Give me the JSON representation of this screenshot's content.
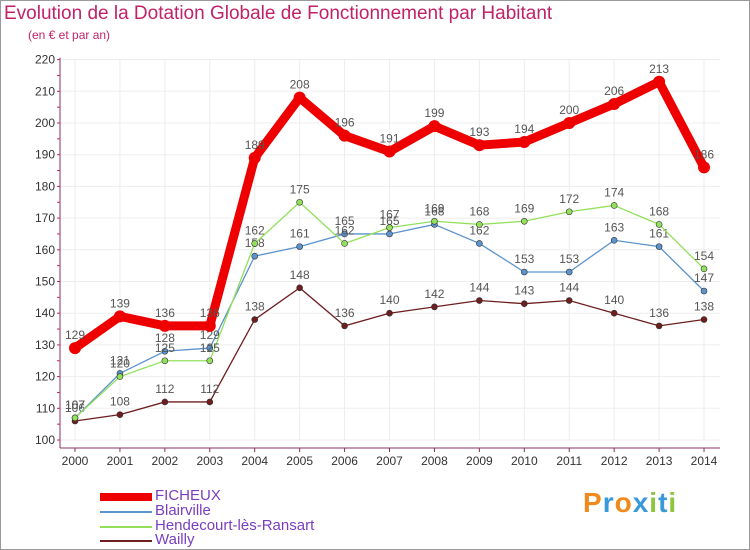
{
  "chart_data": {
    "type": "line",
    "title": "Evolution de la Dotation Globale de Fonctionnement par Habitant",
    "subtitle": "(en € et par an)",
    "xlabel": "",
    "ylabel": "",
    "ylim": [
      100,
      220
    ],
    "yticks": [
      "100",
      "110",
      "120",
      "130",
      "140",
      "150",
      "160",
      "170",
      "180",
      "190",
      "200",
      "210",
      "220"
    ],
    "categories": [
      "2000",
      "2001",
      "2002",
      "2003",
      "2004",
      "2005",
      "2006",
      "2007",
      "2008",
      "2009",
      "2010",
      "2011",
      "2012",
      "2013",
      "2014"
    ],
    "legend_position": "bottom-left",
    "series": [
      {
        "name": "Wailly",
        "color": "#6e1e1e",
        "values": [
          106,
          108,
          112,
          112,
          138,
          148,
          136,
          140,
          142,
          144,
          143,
          144,
          140,
          136,
          138
        ],
        "labels": [
          "106",
          "108",
          "112",
          "112",
          "138",
          "148",
          "136",
          "140",
          "142",
          "144",
          "143",
          "144",
          "140",
          "136",
          "138"
        ]
      },
      {
        "name": "Blairville",
        "color": "#5b93cc",
        "values": [
          107,
          121,
          128,
          129,
          158,
          161,
          165,
          165,
          168,
          162,
          153,
          153,
          163,
          161,
          147
        ],
        "labels": [
          "107",
          "121",
          "128",
          "129",
          "158",
          "161",
          "165",
          "165",
          "168",
          "162",
          "153",
          "153",
          "163",
          "161",
          "147"
        ]
      },
      {
        "name": "Hendecourt-lès-Ransart",
        "color": "#92e05c",
        "values": [
          107,
          120,
          125,
          125,
          162,
          175,
          162,
          167,
          169,
          168,
          169,
          172,
          174,
          168,
          154
        ],
        "labels": [
          "107",
          "120",
          "125",
          "125",
          "162",
          "175",
          "162",
          "167",
          "169",
          "168",
          "169",
          "172",
          "174",
          "168",
          "154"
        ]
      },
      {
        "name": "FICHEUX",
        "color": "#ee0000",
        "values": [
          129,
          139,
          136,
          136,
          189,
          208,
          196,
          191,
          199,
          193,
          194,
          200,
          206,
          213,
          186
        ],
        "labels": [
          "129",
          "139",
          "136",
          "136",
          "189",
          "208",
          "196",
          "191",
          "199",
          "193",
          "194",
          "200",
          "206",
          "213",
          "186"
        ]
      }
    ]
  },
  "legend": {
    "items": [
      {
        "label": "FICHEUX",
        "color": "#ee0000"
      },
      {
        "label": "Blairville",
        "color": "#5b93cc"
      },
      {
        "label": "Hendecourt-lès-Ransart",
        "color": "#92e05c"
      },
      {
        "label": "Wailly",
        "color": "#6e1e1e"
      }
    ]
  },
  "brand": {
    "text": "Proxiti",
    "letters": [
      {
        "ch": "P",
        "color": "#f08a1c"
      },
      {
        "ch": "r",
        "color": "#3a9ad9"
      },
      {
        "ch": "o",
        "color": "#f08a1c"
      },
      {
        "ch": "x",
        "color": "#3a9ad9"
      },
      {
        "ch": "i",
        "color": "#8cc63f"
      },
      {
        "ch": "t",
        "color": "#3a9ad9"
      },
      {
        "ch": "i",
        "color": "#8cc63f"
      }
    ]
  }
}
